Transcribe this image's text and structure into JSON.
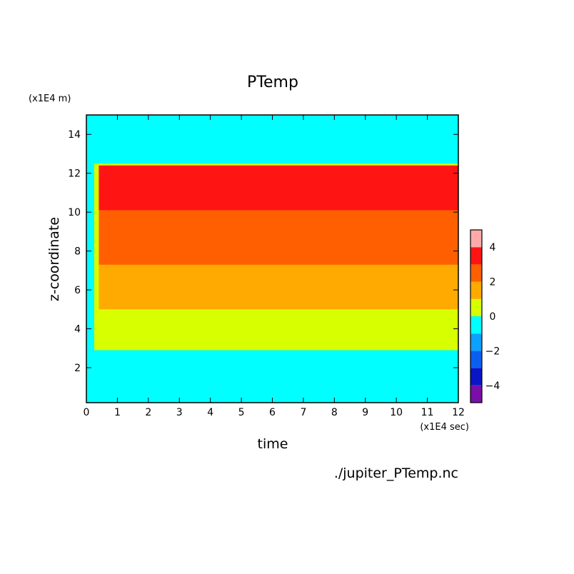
{
  "chart_data": {
    "type": "heatmap",
    "title": "PTemp",
    "xlabel": "time",
    "ylabel": "z-coordinate",
    "x_unit": "(x1E4 sec)",
    "y_unit": "(x1E4 m)",
    "source_label": "./jupiter_PTemp.nc",
    "xlim": [
      0,
      12
    ],
    "ylim": [
      0.2,
      15
    ],
    "x_ticks": [
      0,
      1,
      2,
      3,
      4,
      5,
      6,
      7,
      8,
      9,
      10,
      11,
      12
    ],
    "y_ticks": [
      2,
      4,
      6,
      8,
      10,
      12,
      14
    ],
    "colorbar": {
      "levels": [
        -5,
        -4,
        -3,
        -2,
        -1,
        0,
        1,
        2,
        3,
        4,
        5
      ],
      "tick_values": [
        -4,
        -2,
        0,
        2,
        4
      ],
      "colors": [
        "#7a0fa8",
        "#0a14c8",
        "#0a5ff0",
        "#0ca0ff",
        "#00ffff",
        "#d7ff00",
        "#ffaa00",
        "#ff5f00",
        "#ff1414",
        "#ffaaaa"
      ]
    },
    "regions": [
      {
        "level_range": [
          -1,
          0
        ],
        "color": "#00ffff",
        "description_note": "",
        "boundary": [
          [
            0,
            0.2
          ],
          [
            12,
            0.2
          ],
          [
            12,
            2.9
          ],
          [
            0,
            2.9
          ]
        ]
      },
      {
        "level_range": [
          0,
          1
        ],
        "color": "#d7ff00",
        "description_note": "",
        "boundary": [
          [
            0.25,
            12.5
          ],
          [
            12,
            12.5
          ],
          [
            12,
            2.9
          ],
          [
            0.25,
            2.9
          ]
        ]
      },
      {
        "level_range": [
          1,
          2
        ],
        "color": "#ffaa00",
        "description_note": "",
        "boundary": [
          [
            0.4,
            12.3
          ],
          [
            12,
            12.3
          ],
          [
            12,
            5.0
          ],
          [
            0.4,
            5.0
          ]
        ]
      },
      {
        "level_range": [
          2,
          3
        ],
        "color": "#ff5f00",
        "description_note": "",
        "boundary": [
          [
            0.4,
            12.2
          ],
          [
            12,
            12.2
          ],
          [
            12,
            7.3
          ],
          [
            0.4,
            7.3
          ]
        ]
      },
      {
        "level_range": [
          3,
          4
        ],
        "color": "#ff1414",
        "description_note": "",
        "boundary": [
          [
            0.4,
            12.4
          ],
          [
            12,
            12.4
          ],
          [
            12,
            10.1
          ],
          [
            0.4,
            10.1
          ]
        ]
      }
    ]
  }
}
